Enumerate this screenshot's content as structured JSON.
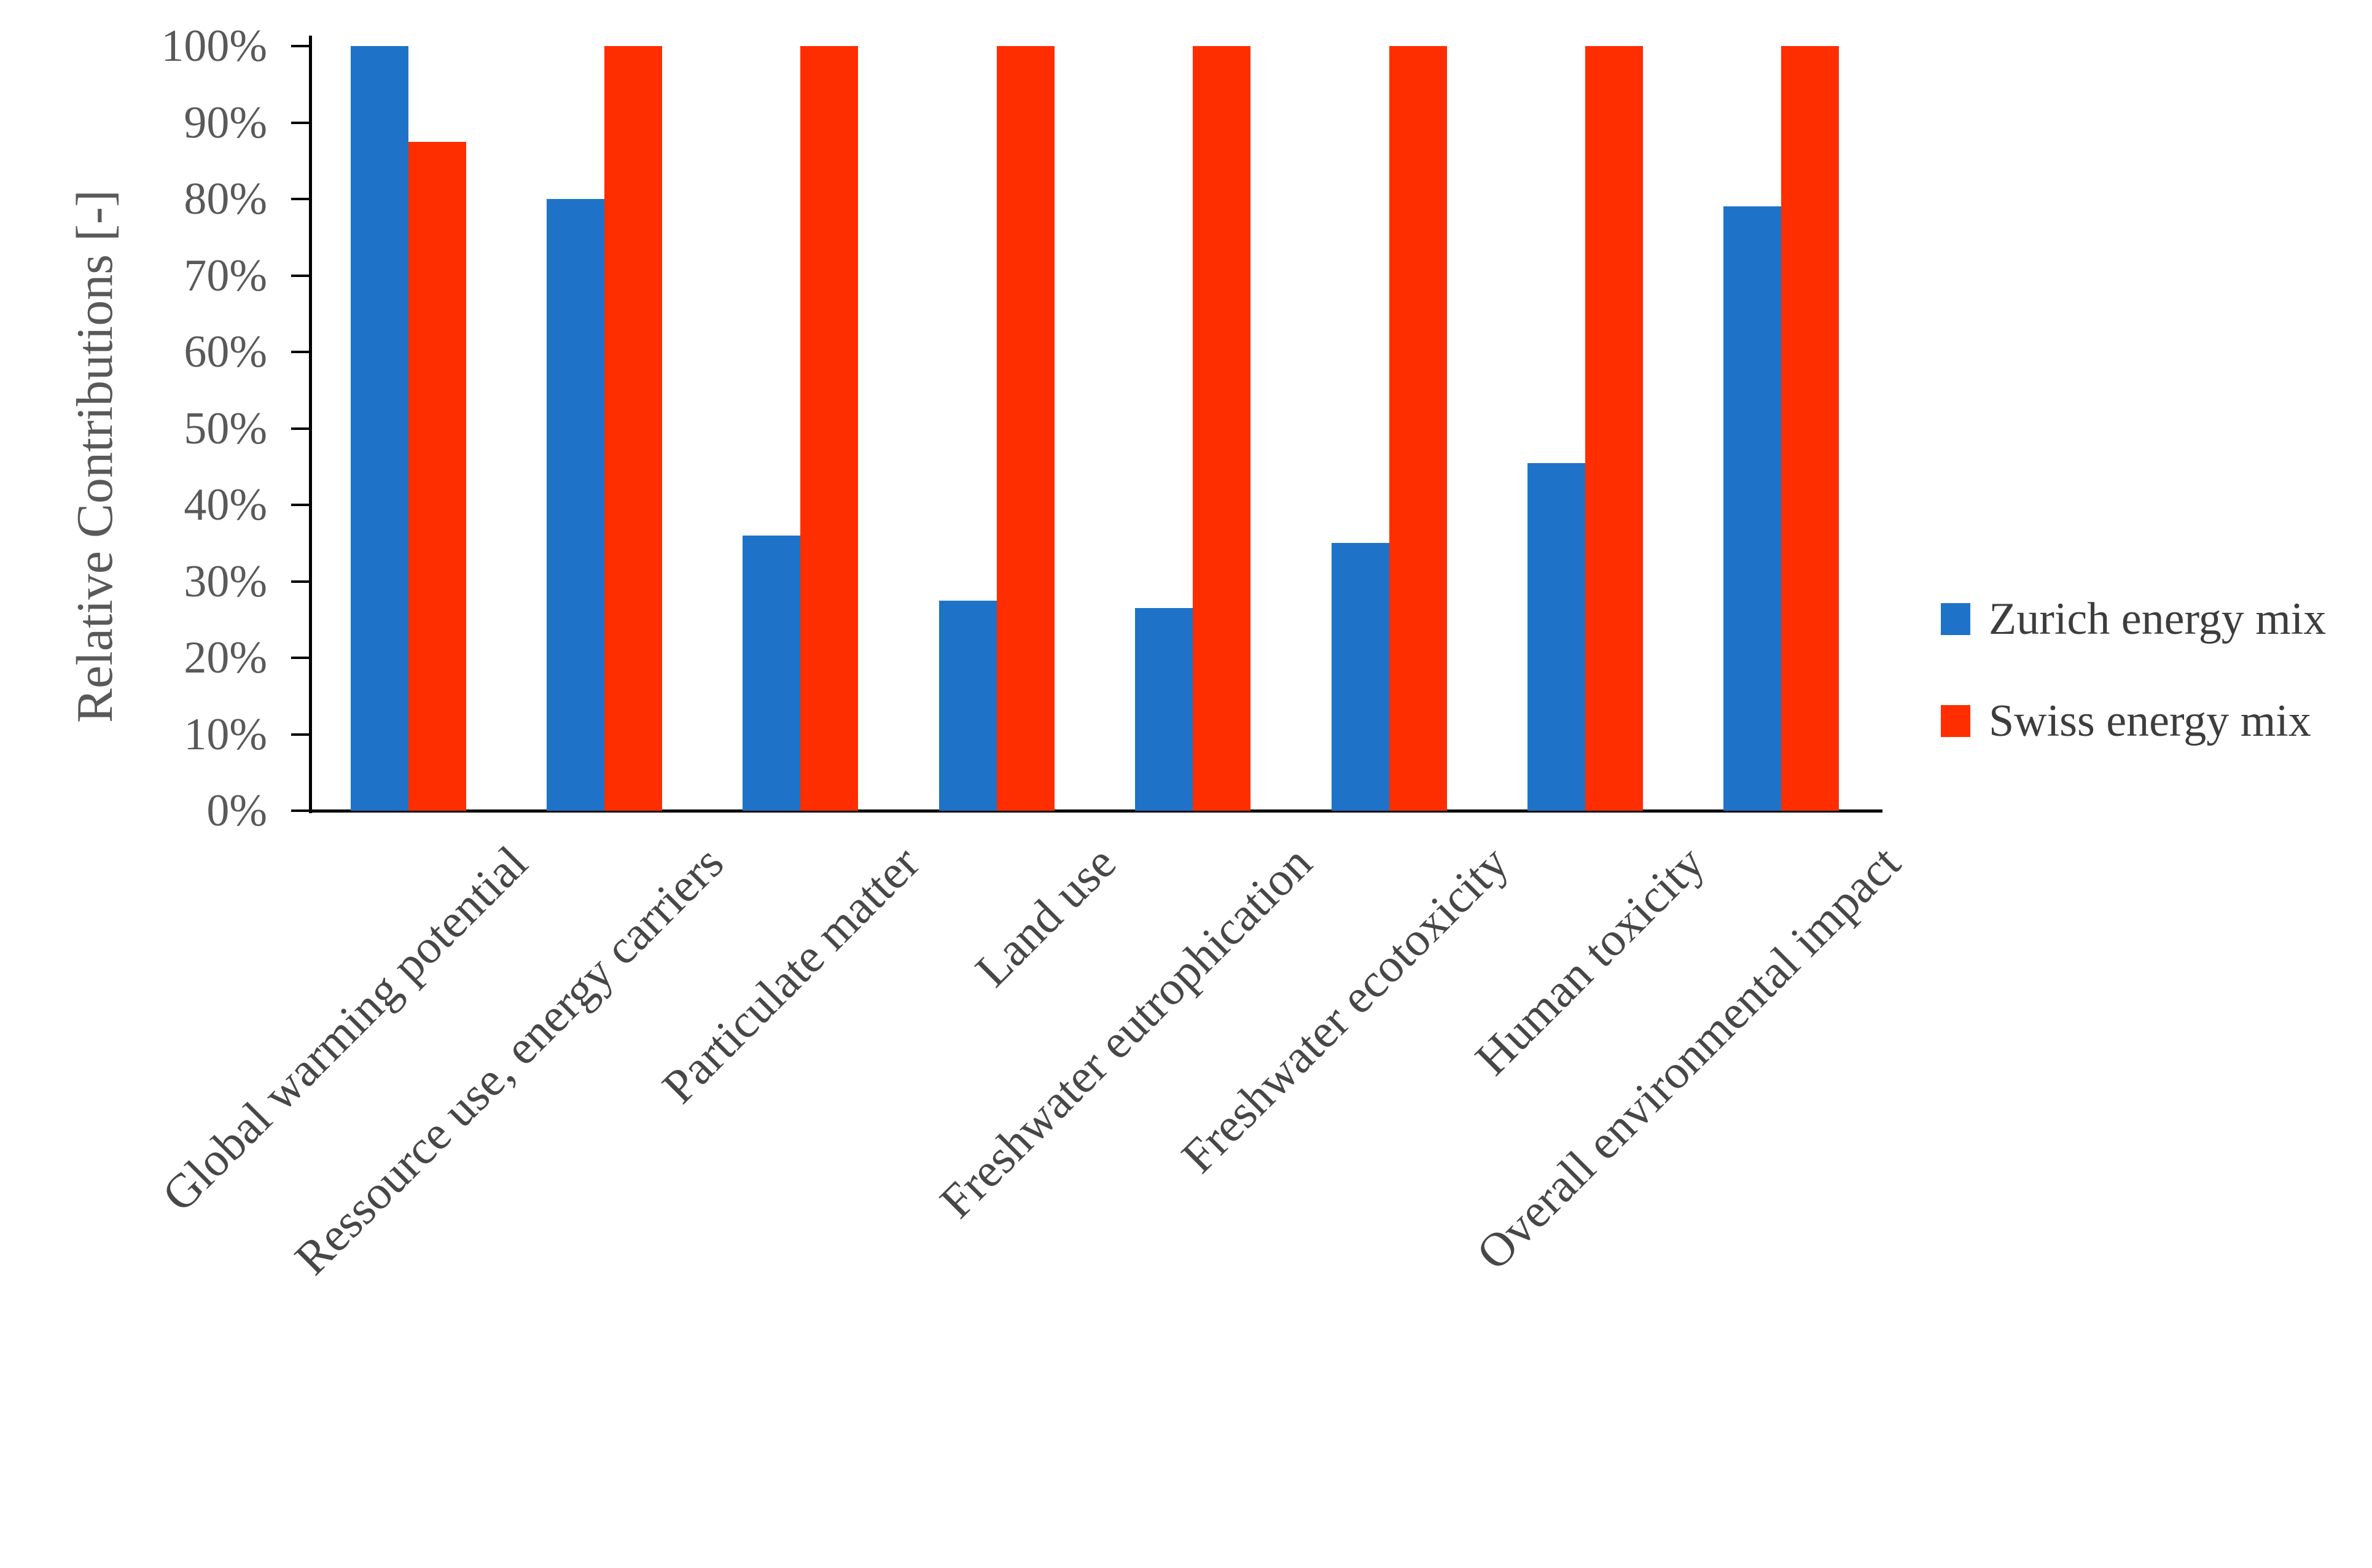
{
  "chart_data": {
    "type": "bar",
    "title": "",
    "ylabel": "Relative Contributions [-]",
    "xlabel": "",
    "ylim": [
      0,
      100
    ],
    "ytick_step": 10,
    "ytick_labels": [
      "0%",
      "10%",
      "20%",
      "30%",
      "40%",
      "50%",
      "60%",
      "70%",
      "80%",
      "90%",
      "100%"
    ],
    "grid": false,
    "legend_position": "right",
    "categories": [
      "Global warming potential",
      "Ressource use, energy carriers",
      "Particulate matter",
      "Land use",
      "Freshwater eutrophication",
      "Freshwater ecotoxicity",
      "Human toxicity",
      "Overall environmental impact"
    ],
    "series": [
      {
        "name": "Zurich energy mix",
        "color": "#1E73C8",
        "values": [
          100,
          80,
          36,
          27.5,
          26.5,
          35,
          45.5,
          79
        ]
      },
      {
        "name": "Swiss energy mix",
        "color": "#FF2E00",
        "values": [
          87.5,
          100,
          100,
          100,
          100,
          100,
          100,
          100
        ]
      }
    ],
    "axis_color": "#000000",
    "tick_label_color": "#595959",
    "category_label_color": "#474747"
  }
}
